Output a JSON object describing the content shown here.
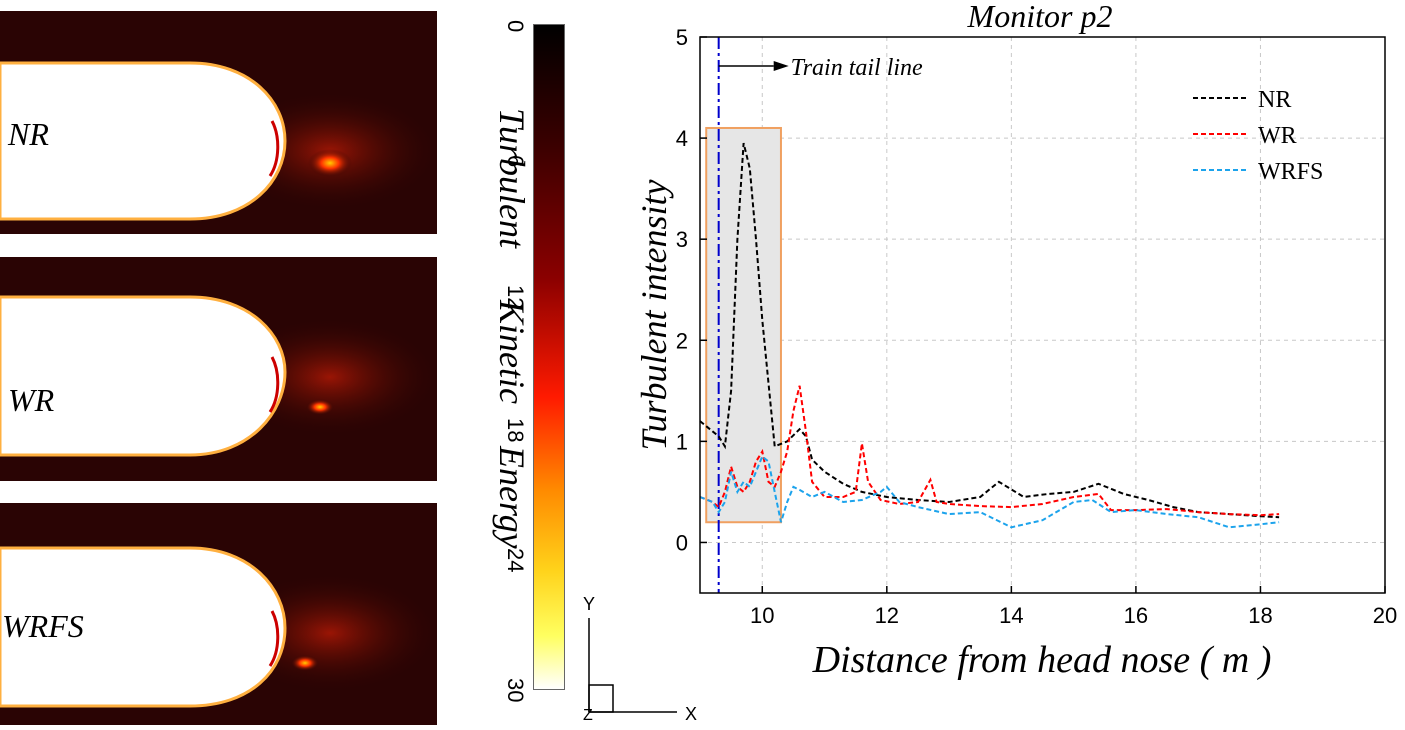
{
  "contours": {
    "panels": [
      {
        "label": "NR"
      },
      {
        "label": "WR"
      },
      {
        "label": "WRFS"
      }
    ],
    "colorbar": {
      "title_words": [
        "Turbulent",
        "Kinetic",
        "Energy"
      ],
      "ticks": [
        "0",
        "6",
        "12",
        "18",
        "24",
        "30"
      ]
    },
    "axes_triad": {
      "y": "Y",
      "x": "X",
      "z": "Z"
    }
  },
  "chart_data": {
    "type": "line",
    "title": "Monitor p2",
    "xlabel": "Distance from head nose ( m )",
    "ylabel": "Turbulent intensity",
    "xlim": [
      9,
      20
    ],
    "ylim": [
      -0.5,
      5
    ],
    "xticks": [
      "10",
      "12",
      "14",
      "16",
      "18",
      "20"
    ],
    "yticks": [
      "0",
      "1",
      "2",
      "3",
      "4",
      "5"
    ],
    "grid": true,
    "legend": "top-right",
    "annotation": {
      "text": "Train tail line",
      "x": 9.3
    },
    "highlight_region": {
      "x": [
        9.1,
        10.3
      ],
      "y": [
        0.2,
        4.1
      ]
    },
    "series": [
      {
        "name": "NR",
        "color": "#000000",
        "x": [
          9.0,
          9.1,
          9.2,
          9.3,
          9.4,
          9.5,
          9.6,
          9.7,
          9.8,
          9.9,
          10.0,
          10.2,
          10.4,
          10.6,
          10.7,
          10.8,
          11.0,
          11.3,
          11.6,
          12.0,
          12.5,
          13.0,
          13.5,
          13.8,
          14.2,
          14.6,
          15.0,
          15.4,
          15.8,
          16.2,
          16.6,
          17.0,
          17.5,
          18.0,
          18.3
        ],
        "y": [
          1.2,
          1.15,
          1.1,
          1.05,
          0.95,
          1.5,
          3.0,
          3.95,
          3.7,
          3.0,
          2.2,
          0.95,
          1.0,
          1.12,
          1.05,
          0.82,
          0.7,
          0.58,
          0.5,
          0.45,
          0.42,
          0.4,
          0.45,
          0.6,
          0.45,
          0.48,
          0.5,
          0.58,
          0.48,
          0.42,
          0.35,
          0.3,
          0.28,
          0.26,
          0.25
        ]
      },
      {
        "name": "WR",
        "color": "#ff0000",
        "x": [
          9.0,
          9.2,
          9.3,
          9.4,
          9.5,
          9.6,
          9.7,
          9.8,
          9.9,
          10.0,
          10.1,
          10.2,
          10.3,
          10.4,
          10.5,
          10.6,
          10.7,
          10.8,
          11.0,
          11.3,
          11.5,
          11.6,
          11.7,
          11.9,
          12.2,
          12.5,
          12.7,
          12.8,
          13.0,
          13.5,
          14.0,
          14.5,
          15.0,
          15.4,
          15.6,
          16.0,
          16.5,
          17.0,
          17.5,
          18.0,
          18.3
        ],
        "y": [
          0.45,
          0.4,
          0.35,
          0.5,
          0.75,
          0.55,
          0.5,
          0.6,
          0.8,
          0.9,
          0.6,
          0.55,
          0.7,
          0.9,
          1.3,
          1.55,
          1.1,
          0.6,
          0.45,
          0.45,
          0.5,
          0.98,
          0.6,
          0.42,
          0.38,
          0.4,
          0.62,
          0.4,
          0.38,
          0.36,
          0.35,
          0.38,
          0.45,
          0.48,
          0.32,
          0.32,
          0.33,
          0.3,
          0.28,
          0.27,
          0.28
        ]
      },
      {
        "name": "WRFS",
        "color": "#1ca3ec",
        "x": [
          9.0,
          9.2,
          9.3,
          9.4,
          9.5,
          9.6,
          9.7,
          9.8,
          9.9,
          10.0,
          10.1,
          10.2,
          10.3,
          10.4,
          10.5,
          10.6,
          10.8,
          11.0,
          11.3,
          11.6,
          11.9,
          12.0,
          12.2,
          12.5,
          13.0,
          13.5,
          14.0,
          14.5,
          15.0,
          15.3,
          15.6,
          16.0,
          16.5,
          17.0,
          17.5,
          18.0,
          18.3
        ],
        "y": [
          0.45,
          0.4,
          0.3,
          0.4,
          0.7,
          0.5,
          0.6,
          0.55,
          0.7,
          0.85,
          0.8,
          0.5,
          0.2,
          0.4,
          0.55,
          0.52,
          0.45,
          0.5,
          0.4,
          0.42,
          0.5,
          0.55,
          0.4,
          0.35,
          0.28,
          0.3,
          0.15,
          0.22,
          0.4,
          0.42,
          0.3,
          0.32,
          0.28,
          0.25,
          0.15,
          0.18,
          0.2
        ]
      }
    ]
  }
}
